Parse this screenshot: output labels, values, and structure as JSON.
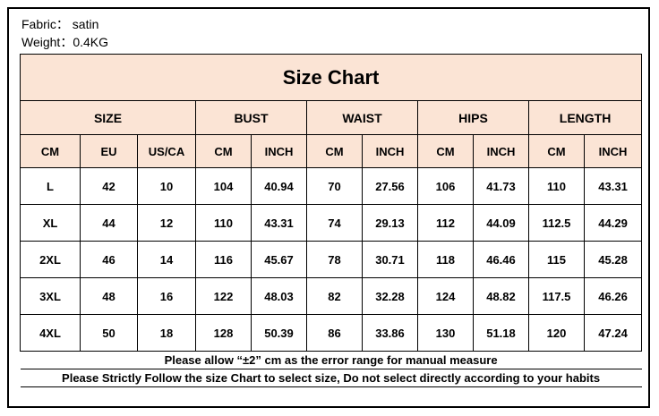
{
  "header": {
    "fabric": "Fabric： satin",
    "weight": "Weight：0.4KG"
  },
  "table": {
    "title": "Size Chart",
    "groups": [
      "SIZE",
      "BUST",
      "WAIST",
      "HIPS",
      "LENGTH"
    ],
    "columns": [
      "CM",
      "EU",
      "US/CA",
      "CM",
      "INCH",
      "CM",
      "INCH",
      "CM",
      "INCH",
      "CM",
      "INCH"
    ],
    "rows": [
      [
        "L",
        "42",
        "10",
        "104",
        "40.94",
        "70",
        "27.56",
        "106",
        "41.73",
        "110",
        "43.31"
      ],
      [
        "XL",
        "44",
        "12",
        "110",
        "43.31",
        "74",
        "29.13",
        "112",
        "44.09",
        "112.5",
        "44.29"
      ],
      [
        "2XL",
        "46",
        "14",
        "116",
        "45.67",
        "78",
        "30.71",
        "118",
        "46.46",
        "115",
        "45.28"
      ],
      [
        "3XL",
        "48",
        "16",
        "122",
        "48.03",
        "82",
        "32.28",
        "124",
        "48.82",
        "117.5",
        "46.26"
      ],
      [
        "4XL",
        "50",
        "18",
        "128",
        "50.39",
        "86",
        "33.86",
        "130",
        "51.18",
        "120",
        "47.24"
      ]
    ]
  },
  "footer": [
    "Please allow “±2” cm as the error range for manual measure",
    "Please Strictly Follow the size Chart to select size,  Do not select directly according to your habits"
  ]
}
